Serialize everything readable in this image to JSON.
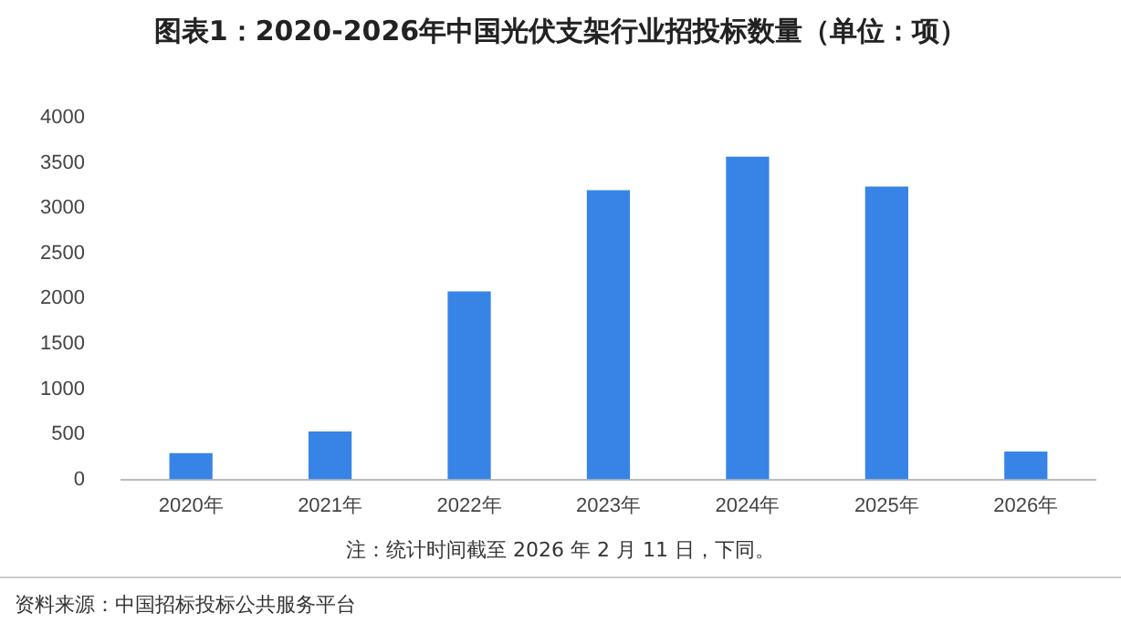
{
  "chart_data": {
    "type": "bar",
    "title": "图表1：2020-2026年中国光伏支架行业招投标数量（单位：项）",
    "categories": [
      "2020年",
      "2021年",
      "2022年",
      "2023年",
      "2024年",
      "2025年",
      "2026年"
    ],
    "values": [
      290,
      530,
      2080,
      3200,
      3570,
      3240,
      310
    ],
    "color": "#3784e6",
    "ylim": [
      0,
      4000
    ],
    "yticks": [
      0,
      500,
      1000,
      1500,
      2000,
      2500,
      3000,
      3500,
      4000
    ],
    "grid": false,
    "annotations": [
      "注：统计时间截至 2026 年 2 月 11 日，下同。",
      "资料来源：中国招标投标公共服务平台"
    ]
  }
}
